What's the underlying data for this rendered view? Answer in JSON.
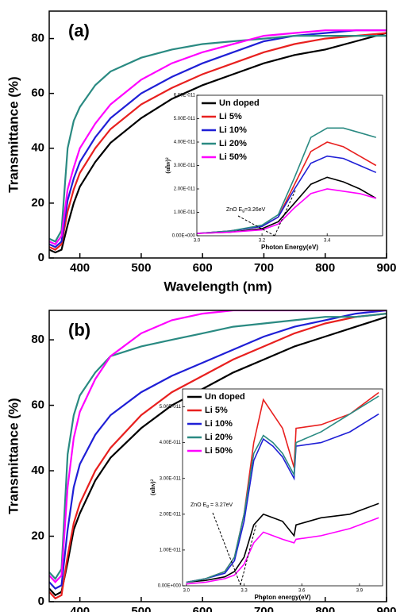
{
  "chart_data": [
    {
      "type": "line",
      "annotation": "(a)",
      "x_label": "Wavelength (nm)",
      "y_label": "Transmittance (%)",
      "x": [
        350,
        360,
        370,
        380,
        390,
        400,
        425,
        450,
        500,
        550,
        600,
        650,
        700,
        750,
        800,
        850,
        900
      ],
      "xlim": [
        350,
        900
      ],
      "xticks": [
        400,
        500,
        600,
        700,
        800,
        900
      ],
      "ylim": [
        0,
        90
      ],
      "yticks": [
        0,
        20,
        40,
        60,
        80
      ],
      "series": [
        {
          "name": "Un doped",
          "color": "#000000",
          "values": [
            3,
            2,
            3,
            12,
            20,
            26,
            35,
            42,
            51,
            58,
            63,
            67,
            71,
            74,
            76,
            79,
            82
          ]
        },
        {
          "name": "Li 5%",
          "color": "#e8201f",
          "values": [
            4,
            3,
            5,
            17,
            25,
            31,
            40,
            47,
            56,
            62,
            67,
            71,
            75,
            78,
            80,
            81,
            82
          ]
        },
        {
          "name": "Li 10%",
          "color": "#1f1fd6",
          "values": [
            5,
            4,
            6,
            21,
            29,
            35,
            44,
            51,
            60,
            66,
            71,
            75,
            79,
            81,
            82,
            83,
            83
          ]
        },
        {
          "name": "Li 20%",
          "color": "#2a8a82",
          "values": [
            7,
            6,
            10,
            40,
            50,
            55,
            63,
            68,
            73,
            76,
            78,
            79,
            80,
            81,
            81,
            81,
            81
          ]
        },
        {
          "name": "Li 50%",
          "color": "#ff00ff",
          "values": [
            6,
            5,
            8,
            25,
            33,
            40,
            49,
            56,
            65,
            71,
            75,
            78,
            81,
            82,
            83,
            83,
            83
          ]
        }
      ]
    },
    {
      "type": "line",
      "annotation": {
        "text": "ZnO E",
        "sub": "g",
        "rest": "=3.26eV"
      },
      "x_label": "Photon Energy(eV)",
      "y_label": "(αhν)²",
      "x": [
        3.0,
        3.1,
        3.2,
        3.25,
        3.3,
        3.35,
        3.4,
        3.45,
        3.5,
        3.55
      ],
      "xlim": [
        3.0,
        3.57
      ],
      "xticks": [
        {
          "value": 3,
          "label": "3.0"
        },
        3.2,
        3.4
      ],
      "ylim": [
        0,
        6e-11
      ],
      "yticks": [
        {
          "value": 0,
          "label": "0.00E+000"
        },
        {
          "value": 1e-11,
          "label": "1.00E-011"
        },
        {
          "value": 2e-11,
          "label": "2.00E-011"
        },
        {
          "value": 3e-11,
          "label": "3.00E-011"
        },
        {
          "value": 4e-11,
          "label": "4.00E-011"
        },
        {
          "value": 5e-11,
          "label": "5.00E-011"
        },
        {
          "value": 6e-11,
          "label": "6.00E-011"
        }
      ],
      "series": [
        {
          "name": "Un doped",
          "color": "#000000",
          "values": [
            1e-12,
            1.5e-12,
            3e-12,
            6e-12,
            1.4e-11,
            2.2e-11,
            2.5e-11,
            2.3e-11,
            2e-11,
            1.6e-11
          ]
        },
        {
          "name": "Li 5%",
          "color": "#e8201f",
          "values": [
            1e-12,
            2e-12,
            4e-12,
            8e-12,
            2.2e-11,
            3.6e-11,
            4e-11,
            3.8e-11,
            3.4e-11,
            3e-11
          ]
        },
        {
          "name": "Li 10%",
          "color": "#1f1fd6",
          "values": [
            1e-12,
            2e-12,
            4e-12,
            8e-12,
            2e-11,
            3.1e-11,
            3.4e-11,
            3.3e-11,
            3e-11,
            2.7e-11
          ]
        },
        {
          "name": "Li 20%",
          "color": "#2a8a82",
          "values": [
            1e-12,
            2e-12,
            4.5e-12,
            9e-12,
            2.5e-11,
            4.2e-11,
            4.6e-11,
            4.6e-11,
            4.4e-11,
            4.2e-11
          ]
        },
        {
          "name": "Li 50%",
          "color": "#ff00ff",
          "values": [
            1e-12,
            1.5e-12,
            2.5e-12,
            5e-12,
            1.2e-11,
            1.8e-11,
            2e-11,
            1.9e-11,
            1.8e-11,
            1.6e-11
          ]
        }
      ]
    },
    {
      "type": "line",
      "annotation": "(b)",
      "x_label": "Wavelength (nm)",
      "y_label": "Transmittance (%)",
      "x": [
        350,
        360,
        370,
        380,
        390,
        400,
        425,
        450,
        500,
        550,
        600,
        650,
        700,
        750,
        800,
        850,
        900
      ],
      "xlim": [
        350,
        900
      ],
      "xticks": [
        400,
        500,
        600,
        700,
        800,
        900
      ],
      "ylim": [
        0,
        89
      ],
      "yticks": [
        0,
        20,
        40,
        60,
        80
      ],
      "series": [
        {
          "name": "Un doped",
          "color": "#000000",
          "values": [
            4,
            2,
            3,
            12,
            22,
            27,
            37,
            44,
            53,
            60,
            65,
            70,
            74,
            78,
            81,
            84,
            87
          ]
        },
        {
          "name": "Li 5%",
          "color": "#e8201f",
          "values": [
            3,
            1,
            2,
            14,
            24,
            30,
            40,
            47,
            57,
            64,
            69,
            74,
            78,
            82,
            85,
            87,
            88
          ]
        },
        {
          "name": "Li 10%",
          "color": "#1f1fd6",
          "values": [
            6,
            4,
            5,
            22,
            35,
            42,
            51,
            57,
            64,
            69,
            73,
            77,
            81,
            84,
            86,
            88,
            89
          ]
        },
        {
          "name": "Li 20%",
          "color": "#2a8a82",
          "values": [
            9,
            7,
            10,
            45,
            57,
            63,
            70,
            75,
            78,
            80,
            82,
            84,
            85,
            86,
            87,
            87,
            88
          ]
        },
        {
          "name": "Li 50%",
          "color": "#ff00ff",
          "values": [
            8,
            6,
            8,
            35,
            50,
            58,
            68,
            75,
            82,
            86,
            88,
            89,
            89,
            89,
            89,
            89,
            89
          ]
        }
      ]
    },
    {
      "type": "line",
      "annotation": {
        "text": "ZnO E",
        "sub": "g",
        "rest": " = 3.27eV"
      },
      "x_label": "Photon energy(eV)",
      "y_label": "(αhν)²",
      "x": [
        3.0,
        3.1,
        3.2,
        3.25,
        3.3,
        3.35,
        3.4,
        3.45,
        3.5,
        3.56,
        3.57,
        3.7,
        3.85,
        4.0
      ],
      "xlim": [
        2.98,
        4.02
      ],
      "xticks": [
        {
          "value": 3,
          "label": "3.0"
        },
        3.3,
        3.6,
        3.9
      ],
      "ylim": [
        0,
        5.5e-11
      ],
      "yticks": [
        {
          "value": 0,
          "label": "0.00E+000"
        },
        {
          "value": 1e-11,
          "label": "1.00E-011"
        },
        {
          "value": 2e-11,
          "label": "2.00E-011"
        },
        {
          "value": 3e-11,
          "label": "3.00E-011"
        },
        {
          "value": 4e-11,
          "label": "4.00E-011"
        },
        {
          "value": 5e-11,
          "label": "5.00E-011"
        }
      ],
      "series": [
        {
          "name": "Un doped",
          "color": "#000000",
          "values": [
            1e-12,
            1.5e-12,
            2.5e-12,
            4e-12,
            8e-12,
            1.7e-11,
            2e-11,
            1.9e-11,
            1.8e-11,
            1.4e-11,
            1.7e-11,
            1.9e-11,
            2e-11,
            2.3e-11
          ]
        },
        {
          "name": "Li 5%",
          "color": "#e8201f",
          "values": [
            1e-12,
            2e-12,
            4e-12,
            8e-12,
            2e-11,
            4e-11,
            5.2e-11,
            4.8e-11,
            4.4e-11,
            3.3e-11,
            4.4e-11,
            4.5e-11,
            4.8e-11,
            5.4e-11
          ]
        },
        {
          "name": "Li 10%",
          "color": "#1f1fd6",
          "values": [
            1e-12,
            2e-12,
            3.5e-12,
            7e-12,
            1.8e-11,
            3.5e-11,
            4.1e-11,
            3.9e-11,
            3.6e-11,
            3e-11,
            3.9e-11,
            4e-11,
            4.3e-11,
            4.8e-11
          ]
        },
        {
          "name": "Li 20%",
          "color": "#2a8a82",
          "values": [
            1e-12,
            2e-12,
            4e-12,
            8e-12,
            2e-11,
            3.7e-11,
            4.2e-11,
            4e-11,
            3.7e-11,
            3.1e-11,
            4e-11,
            4.3e-11,
            4.8e-11,
            5.3e-11
          ]
        },
        {
          "name": "Li 50%",
          "color": "#ff00ff",
          "values": [
            5e-13,
            1e-12,
            2e-12,
            3e-12,
            6e-12,
            1.2e-11,
            1.5e-11,
            1.4e-11,
            1.3e-11,
            1.2e-11,
            1.3e-11,
            1.4e-11,
            1.6e-11,
            1.9e-11
          ]
        }
      ]
    }
  ]
}
